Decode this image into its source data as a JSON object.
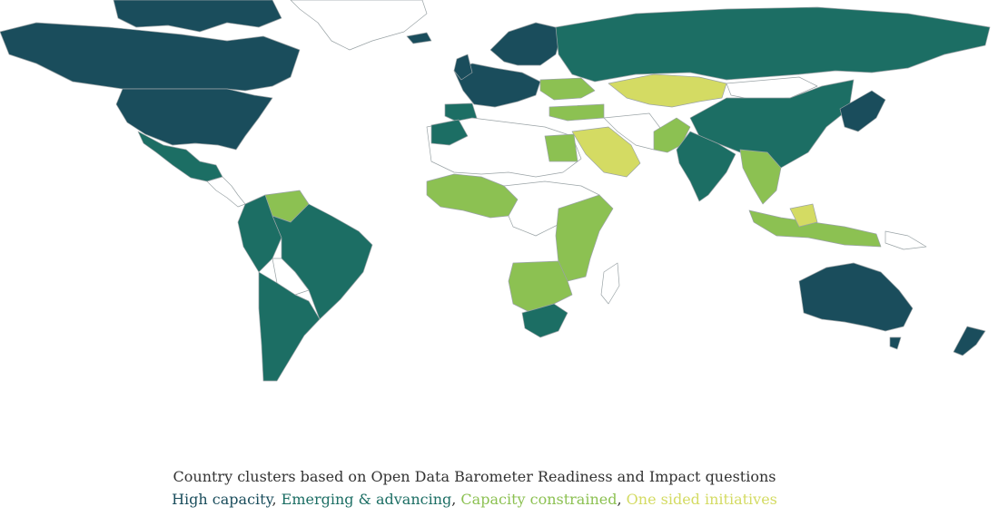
{
  "caption": {
    "title": "Country clusters based on Open Data Barometer Readiness and Impact questions"
  },
  "legend": {
    "items": [
      {
        "label": "High capacity",
        "color": "#1a4d5c"
      },
      {
        "label": "Emerging & advancing",
        "color": "#1c6e64"
      },
      {
        "label": "Capacity constrained",
        "color": "#8cc152"
      },
      {
        "label": "One sided initiatives",
        "color": "#d4db63"
      }
    ],
    "separator": ", "
  },
  "colors": {
    "no_data": "#ffffff",
    "border": "#9aa3a6"
  }
}
